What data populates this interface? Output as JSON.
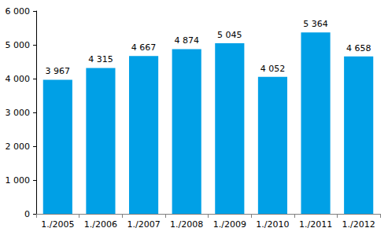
{
  "chart_data": {
    "type": "bar",
    "categories": [
      "1./2005",
      "1./2006",
      "1./2007",
      "1./2008",
      "1./2009",
      "1./2010",
      "1./2011",
      "1./2012"
    ],
    "values": [
      3967,
      4315,
      4667,
      4874,
      5045,
      4052,
      5364,
      4658
    ],
    "value_labels": [
      "3 967",
      "4 315",
      "4 667",
      "4 874",
      "5 045",
      "4 052",
      "5 364",
      "4 658"
    ],
    "color": "#00a0e6",
    "ylim": [
      0,
      6000
    ],
    "yticks": [
      0,
      {
        "value": 1000,
        "label": "1 000"
      },
      {
        "value": 2000,
        "label": "2 000"
      },
      {
        "value": 3000,
        "label": "3 000"
      },
      {
        "value": 4000,
        "label": "4 000"
      },
      {
        "value": 5000,
        "label": "5 000"
      },
      {
        "value": 6000,
        "label": "6 000"
      }
    ],
    "grid": false,
    "data_labels": true
  }
}
